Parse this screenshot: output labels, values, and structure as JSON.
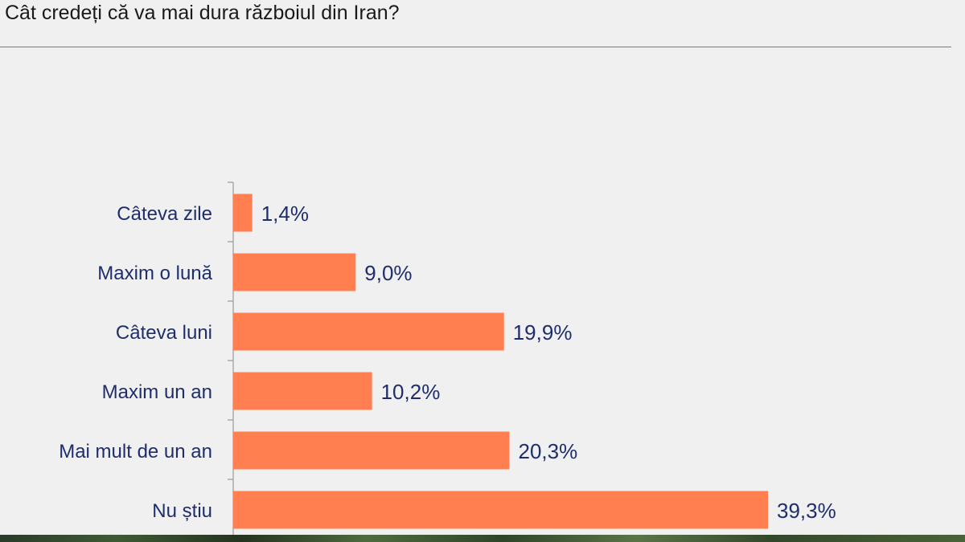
{
  "chart_data": {
    "type": "bar",
    "orientation": "horizontal",
    "title": "Cât credeți că va mai dura războiul din Iran?",
    "categories": [
      "Câteva zile",
      "Maxim o lună",
      "Câteva luni",
      "Maxim un an",
      "Mai mult de un an",
      "Nu știu"
    ],
    "values": [
      1.4,
      9.0,
      19.9,
      10.2,
      20.3,
      39.3
    ],
    "value_labels": [
      "1,4%",
      "9,0%",
      "19,9%",
      "10,2%",
      "20,3%",
      "39,3%"
    ],
    "unit": "%",
    "xlim": [
      0,
      40
    ],
    "grid": false,
    "legend": "none",
    "colors": {
      "bar": "#ff7f50",
      "category_text": "#1f2d6b",
      "value_text": "#1f2d6b",
      "axis": "#9a9a9a",
      "background": "#f0f0f0"
    }
  }
}
